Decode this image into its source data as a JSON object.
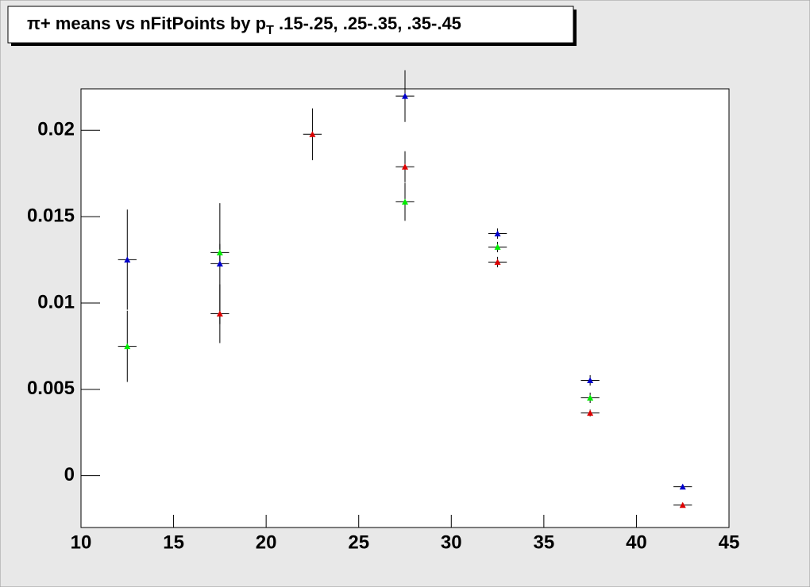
{
  "chart_data": {
    "type": "scatter",
    "title": {
      "main": "π+ means vs nFitPoints by p",
      "sub": "T",
      "rest": " .15-.25, .25-.35, .35-.45"
    },
    "xlim": [
      10,
      45
    ],
    "xticks": [
      10,
      15,
      20,
      25,
      30,
      35,
      40,
      45
    ],
    "ylim": [
      -0.003,
      0.0224
    ],
    "yticks": [
      0,
      0.005,
      0.01,
      0.015,
      0.02
    ],
    "series": [
      {
        "color": "#0000cc",
        "xerr": 0.5,
        "x": [
          12.5,
          17.5,
          27.5,
          32.5,
          37.5,
          42.5
        ],
        "values": [
          0.01251,
          0.01228,
          0.02198,
          0.01402,
          0.00552,
          -0.00064
        ],
        "errors": [
          0.0029,
          0.0035,
          0.0015,
          0.0003,
          0.0003,
          0.0001
        ]
      },
      {
        "color": "#00ee00",
        "xerr": 0.5,
        "x": [
          12.5,
          17.5,
          27.5,
          32.5,
          37.5
        ],
        "values": [
          0.00749,
          0.01292,
          0.01586,
          0.01324,
          0.00451
        ],
        "errors": [
          0.00206,
          0.0005,
          0.0011,
          0.0003,
          0.0003
        ]
      },
      {
        "color": "#dd0000",
        "xerr": 0.5,
        "x": [
          17.5,
          22.5,
          27.5,
          32.5,
          37.5,
          42.5
        ],
        "values": [
          0.00938,
          0.01977,
          0.01789,
          0.01237,
          0.00363,
          -0.0017
        ],
        "errors": [
          0.0017,
          0.0015,
          0.0009,
          0.0003,
          0.0002,
          0.0001
        ]
      }
    ]
  }
}
